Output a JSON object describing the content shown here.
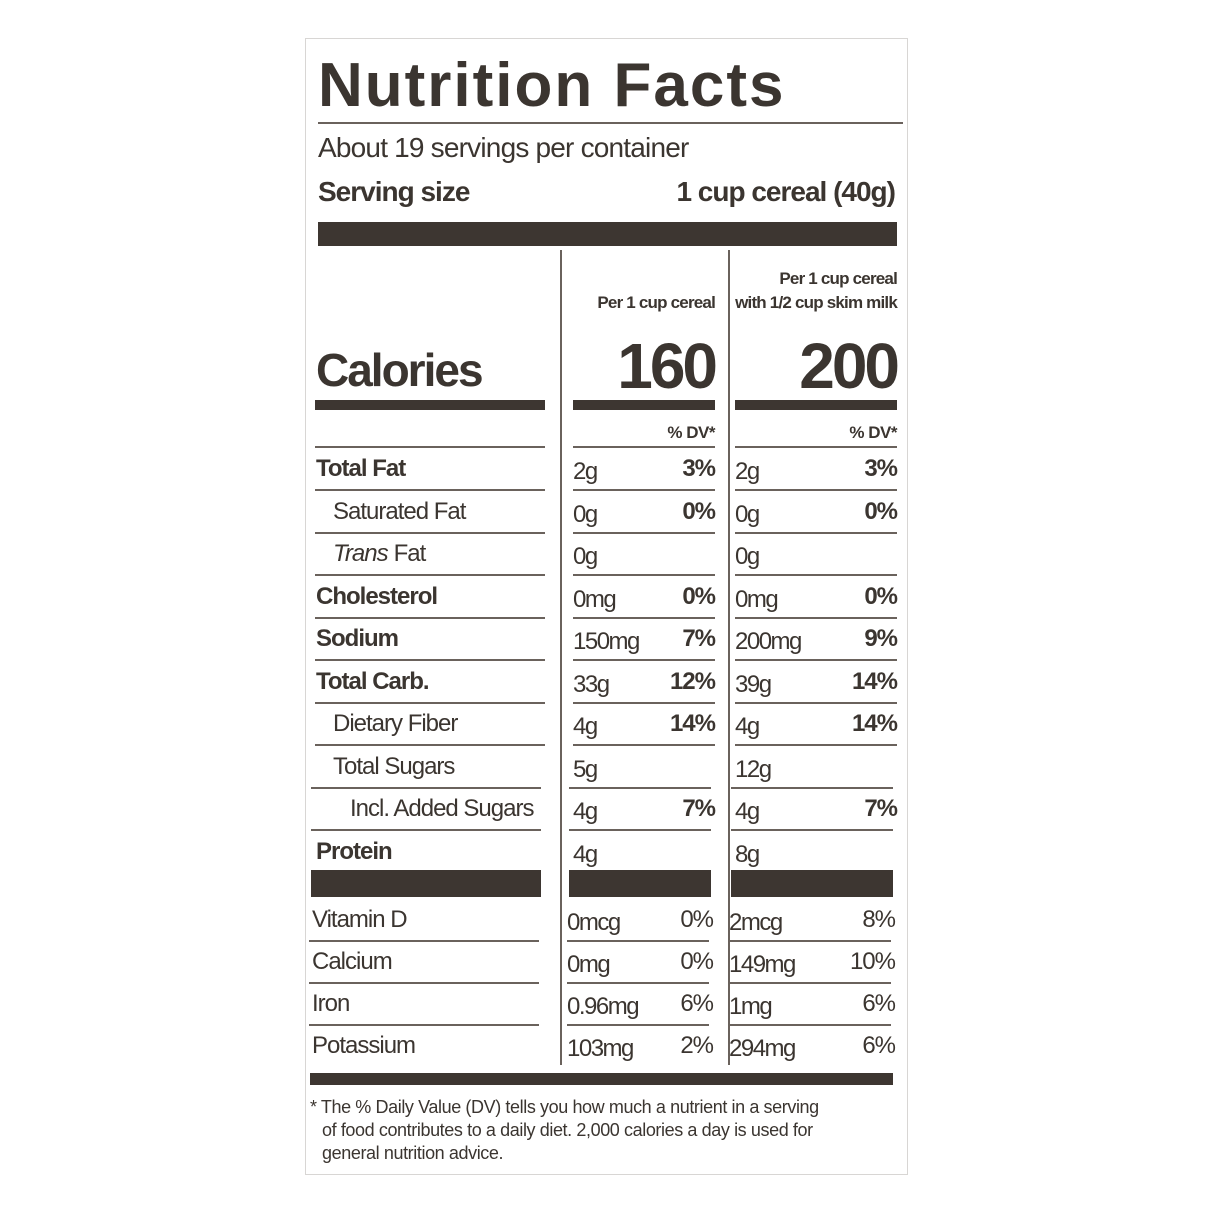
{
  "title": "Nutrition Facts",
  "servings": "About 19 servings per container",
  "serving_size": {
    "label": "Serving size",
    "value": "1 cup cereal (40g)"
  },
  "column_headers": [
    [
      "Per 1 cup cereal"
    ],
    [
      "Per 1 cup cereal",
      "with 1/2 cup skim milk"
    ]
  ],
  "calories": {
    "label": "Calories",
    "values": [
      160,
      200
    ]
  },
  "dv_header": "% DV*",
  "rows": [
    {
      "label": "Total Fat",
      "style": "main",
      "cols": [
        {
          "amount": "2g",
          "dv": "3%"
        },
        {
          "amount": "2g",
          "dv": "3%"
        }
      ]
    },
    {
      "label": "Saturated Fat",
      "style": "sub",
      "cols": [
        {
          "amount": "0g",
          "dv": "0%"
        },
        {
          "amount": "0g",
          "dv": "0%"
        }
      ]
    },
    {
      "label_italic": "Trans",
      "label": "Fat",
      "style": "sub",
      "cols": [
        {
          "amount": "0g",
          "dv": null
        },
        {
          "amount": "0g",
          "dv": null
        }
      ]
    },
    {
      "label": "Cholesterol",
      "style": "main",
      "cols": [
        {
          "amount": "0mg",
          "dv": "0%"
        },
        {
          "amount": "0mg",
          "dv": "0%"
        }
      ]
    },
    {
      "label": "Sodium",
      "style": "main",
      "cols": [
        {
          "amount": "150mg",
          "dv": "7%"
        },
        {
          "amount": "200mg",
          "dv": "9%"
        }
      ]
    },
    {
      "label": "Total Carb.",
      "style": "main",
      "cols": [
        {
          "amount": "33g",
          "dv": "12%"
        },
        {
          "amount": "39g",
          "dv": "14%"
        }
      ]
    },
    {
      "label": "Dietary Fiber",
      "style": "sub",
      "cols": [
        {
          "amount": "4g",
          "dv": "14%"
        },
        {
          "amount": "4g",
          "dv": "14%"
        }
      ]
    },
    {
      "label": "Total Sugars",
      "style": "sub",
      "cols": [
        {
          "amount": "5g",
          "dv": null
        },
        {
          "amount": "12g",
          "dv": null
        }
      ]
    },
    {
      "label": "Incl. Added Sugars",
      "style": "subsub",
      "cols": [
        {
          "amount": "4g",
          "dv": "7%"
        },
        {
          "amount": "4g",
          "dv": "7%"
        }
      ]
    },
    {
      "label": "Protein",
      "style": "main",
      "cols": [
        {
          "amount": "4g",
          "dv": null
        },
        {
          "amount": "8g",
          "dv": null
        }
      ]
    }
  ],
  "vitamins": [
    {
      "label": "Vitamin D",
      "cols": [
        {
          "amount": "0mcg",
          "dv": "0%"
        },
        {
          "amount": "2mcg",
          "dv": "8%"
        }
      ]
    },
    {
      "label": "Calcium",
      "cols": [
        {
          "amount": "0mg",
          "dv": "0%"
        },
        {
          "amount": "149mg",
          "dv": "10%"
        }
      ]
    },
    {
      "label": "Iron",
      "cols": [
        {
          "amount": "0.96mg",
          "dv": "6%"
        },
        {
          "amount": "1mg",
          "dv": "6%"
        }
      ]
    },
    {
      "label": "Potassium",
      "cols": [
        {
          "amount": "103mg",
          "dv": "2%"
        },
        {
          "amount": "294mg",
          "dv": "6%"
        }
      ]
    }
  ],
  "footnote": [
    "* The % Daily Value (DV) tells you how much a nutrient in a serving",
    "of food contributes to a daily diet. 2,000 calories a day is used for",
    "general nutrition advice."
  ]
}
